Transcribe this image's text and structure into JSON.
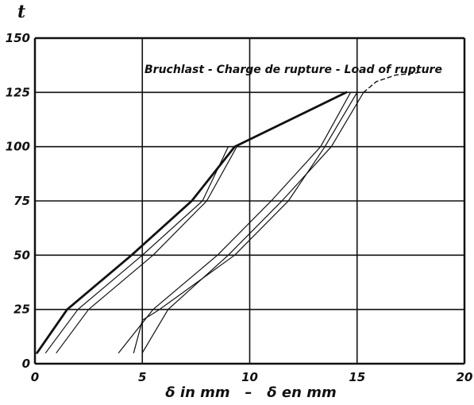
{
  "chart_data": {
    "type": "line",
    "ylabel": "t",
    "xlabel": "δ in mm   –   δ en mm",
    "xlim": [
      0,
      20
    ],
    "ylim": [
      0,
      150
    ],
    "x_ticks": [
      "0",
      "5",
      "10",
      "15",
      "20"
    ],
    "y_ticks": [
      "0",
      "25",
      "50",
      "75",
      "100",
      "125",
      "150"
    ],
    "grid": true,
    "annotation": "Bruchlast - Charge de rupture - Load of rupture",
    "series": [
      {
        "style": "bold",
        "points": [
          [
            0.1,
            5
          ],
          [
            1.5,
            25
          ],
          [
            4.5,
            50
          ],
          [
            7.3,
            75
          ],
          [
            9.3,
            100
          ],
          [
            14.5,
            125
          ]
        ]
      },
      {
        "style": "thin",
        "points": [
          [
            0.5,
            5
          ],
          [
            2.0,
            25
          ],
          [
            5.0,
            50
          ],
          [
            7.8,
            75
          ],
          [
            9.0,
            100
          ]
        ]
      },
      {
        "style": "thin",
        "points": [
          [
            1.0,
            5
          ],
          [
            2.5,
            25
          ],
          [
            5.5,
            50
          ],
          [
            8.0,
            75
          ],
          [
            9.4,
            100
          ]
        ]
      },
      {
        "style": "thin",
        "points": [
          [
            3.9,
            5
          ],
          [
            5.5,
            25
          ],
          [
            8.5,
            50
          ],
          [
            11.0,
            75
          ],
          [
            13.3,
            100
          ],
          [
            14.7,
            125
          ]
        ]
      },
      {
        "style": "thin",
        "points": [
          [
            4.6,
            5
          ],
          [
            5.0,
            20
          ],
          [
            5.8,
            25
          ],
          [
            9.3,
            50
          ],
          [
            11.8,
            75
          ],
          [
            13.5,
            100
          ],
          [
            15.0,
            125
          ]
        ]
      },
      {
        "style": "thin",
        "points": [
          [
            5.0,
            5
          ],
          [
            6.2,
            25
          ],
          [
            9.0,
            50
          ],
          [
            11.5,
            75
          ],
          [
            13.8,
            100
          ],
          [
            15.3,
            125
          ]
        ]
      },
      {
        "style": "dashed",
        "points": [
          [
            15.3,
            125
          ],
          [
            15.9,
            130
          ],
          [
            16.8,
            133
          ],
          [
            17.8,
            134
          ]
        ]
      }
    ]
  }
}
